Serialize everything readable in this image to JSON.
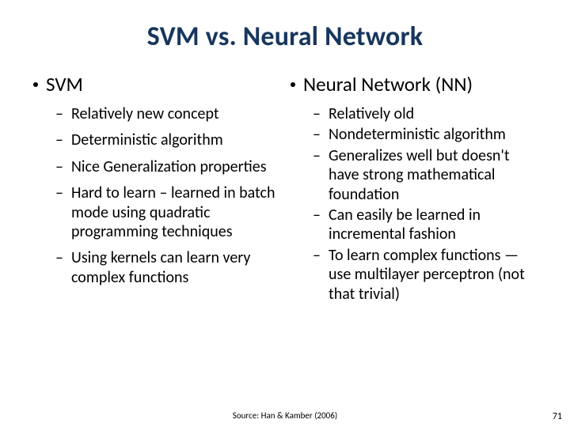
{
  "title": "SVM vs. Neural Network",
  "left": {
    "header": "SVM",
    "items": [
      "Relatively new concept",
      "Deterministic algorithm",
      "Nice Generalization properties",
      "Hard to learn – learned in batch mode using quadratic programming techniques",
      "Using kernels can learn very complex functions"
    ]
  },
  "right": {
    "header": "Neural Network (NN)",
    "items": [
      "Relatively old",
      "Nondeterministic algorithm",
      "Generalizes well but doesn't have strong mathematical foundation",
      "Can easily be learned in incremental fashion",
      "To learn complex functions —use multilayer perceptron (not that trivial)"
    ]
  },
  "source": "Source: Han & Kamber (2006)",
  "page": "71",
  "colors": {
    "title": "#17365d",
    "text": "#000000",
    "background": "#ffffff"
  },
  "typography": {
    "title_fontsize": 34,
    "header_fontsize": 25,
    "body_fontsize": 20,
    "source_fontsize": 11,
    "page_fontsize": 12,
    "font_family": "Calibri"
  }
}
